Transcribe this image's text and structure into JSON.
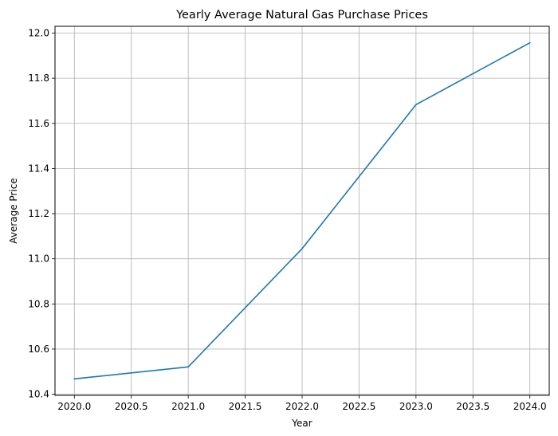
{
  "chart_data": {
    "type": "line",
    "title": "Yearly Average Natural Gas Purchase Prices",
    "xlabel": "Year",
    "ylabel": "Average Price",
    "xlim": [
      2019.83,
      2024.17
    ],
    "ylim": [
      10.395,
      12.03
    ],
    "x_ticks": [
      2020.0,
      2020.5,
      2021.0,
      2021.5,
      2022.0,
      2022.5,
      2023.0,
      2023.5,
      2024.0
    ],
    "x_tick_labels": [
      "2020.0",
      "2020.5",
      "2021.0",
      "2021.5",
      "2022.0",
      "2022.5",
      "2023.0",
      "2023.5",
      "2024.0"
    ],
    "y_ticks": [
      10.4,
      10.6,
      10.8,
      11.0,
      11.2,
      11.4,
      11.6,
      11.8,
      12.0
    ],
    "y_tick_labels": [
      "10.4",
      "10.6",
      "10.8",
      "11.0",
      "11.2",
      "11.4",
      "11.6",
      "11.8",
      "12.0"
    ],
    "grid": true,
    "series": [
      {
        "color": "#1f77b4",
        "x": [
          2020,
          2021,
          2022,
          2023,
          2024
        ],
        "y": [
          10.468,
          10.521,
          11.045,
          11.683,
          11.957
        ]
      }
    ]
  }
}
